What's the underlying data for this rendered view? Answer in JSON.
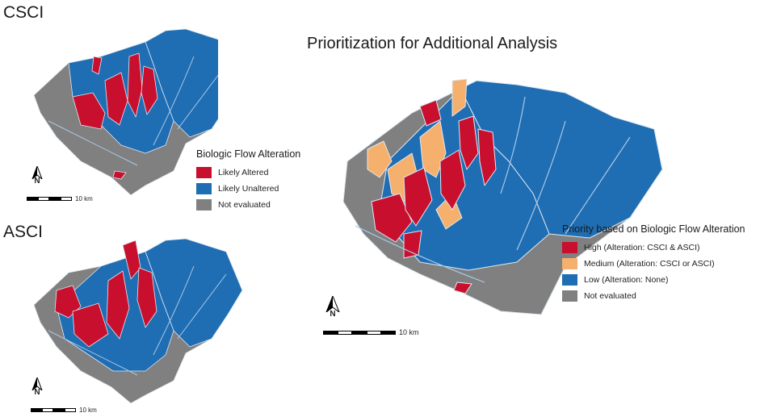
{
  "figure": {
    "main_title": "Prioritization for Additional Analysis",
    "csci_panel": {
      "label": "CSCI"
    },
    "asci_panel": {
      "label": "ASCI"
    }
  },
  "legend_small": {
    "title": "Biologic Flow Alteration",
    "items": [
      {
        "label": "Likely Altered",
        "color": "#c8102e"
      },
      {
        "label": "Likely Unaltered",
        "color": "#1f6db3"
      },
      {
        "label": "Not evaluated",
        "color": "#808080"
      }
    ]
  },
  "legend_priority": {
    "title": "Priority based on Biologic Flow Alteration",
    "items": [
      {
        "label": "High (Alteration: CSCI & ASCI)",
        "color": "#c8102e"
      },
      {
        "label": "Medium (Alteration: CSCI or ASCI)",
        "color": "#f5b06e"
      },
      {
        "label": "Low (Alteration: None)",
        "color": "#1f6db3"
      },
      {
        "label": "Not evaluated",
        "color": "#808080"
      }
    ]
  },
  "scalebar": {
    "label": "10 km"
  },
  "north_arrow": {
    "letter": "N"
  },
  "colors": {
    "stream": "#a9c9e6",
    "border": "#dfe9f2"
  }
}
